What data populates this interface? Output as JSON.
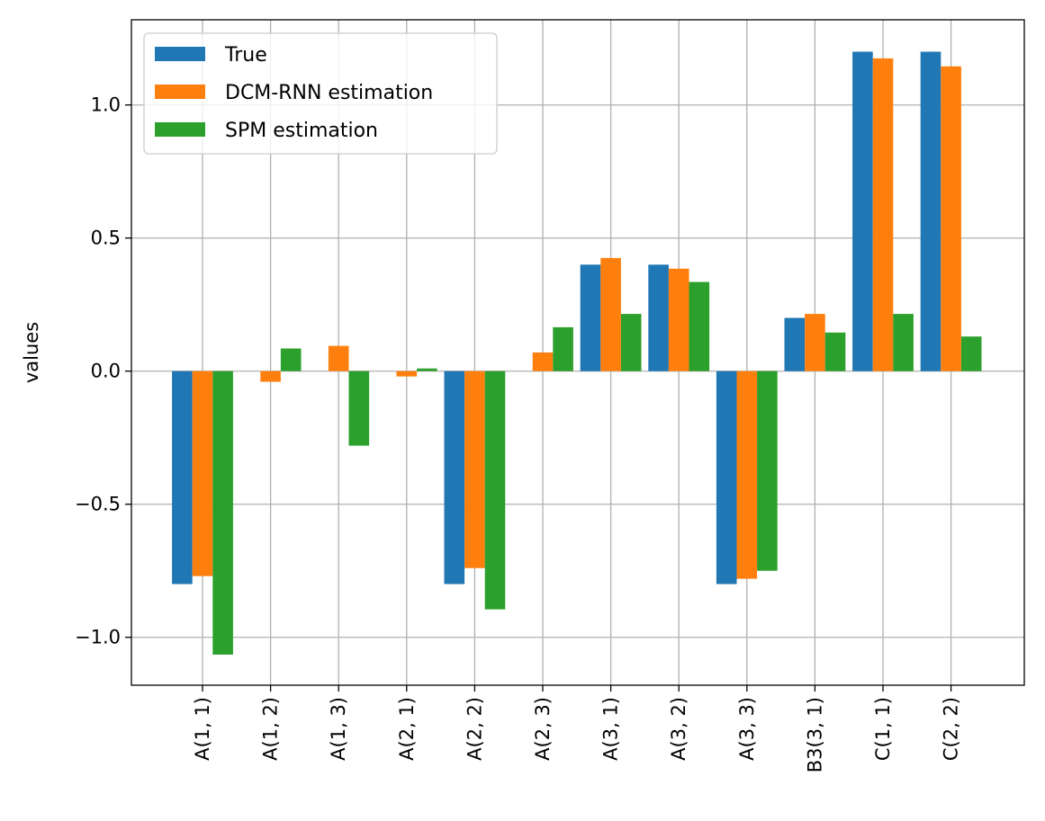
{
  "chart_data": {
    "type": "bar",
    "title": "",
    "xlabel": "",
    "ylabel": "values",
    "ylim": [
      -1.18,
      1.32
    ],
    "yticks": [
      {
        "value": 1.0,
        "label": "1.0"
      },
      {
        "value": 0.5,
        "label": "0.5"
      },
      {
        "value": 0.0,
        "label": "0.0"
      },
      {
        "value": -0.5,
        "label": "−0.5"
      },
      {
        "value": -1.0,
        "label": "−1.0"
      }
    ],
    "grid": true,
    "legend_position": "top-left",
    "categories": [
      "A(1, 1)",
      "A(1, 2)",
      "A(1, 3)",
      "A(2, 1)",
      "A(2, 2)",
      "A(2, 3)",
      "A(3, 1)",
      "A(3, 2)",
      "A(3, 3)",
      "B3(3, 1)",
      "C(1, 1)",
      "C(2, 2)"
    ],
    "series": [
      {
        "name": "True",
        "color": "#1f77b4",
        "values": [
          -0.8,
          0,
          0,
          0,
          -0.8,
          0,
          0.4,
          0.4,
          -0.8,
          0.2,
          1.2,
          1.2
        ]
      },
      {
        "name": "DCM-RNN estimation",
        "color": "#ff7f0e",
        "values": [
          -0.77,
          -0.04,
          0.095,
          -0.02,
          -0.74,
          0.07,
          0.425,
          0.385,
          -0.78,
          0.215,
          1.175,
          1.145
        ]
      },
      {
        "name": "SPM estimation",
        "color": "#2ca02c",
        "values": [
          -1.065,
          0.085,
          -0.28,
          0.01,
          -0.895,
          0.165,
          0.215,
          0.335,
          -0.75,
          0.145,
          0.215,
          0.13
        ]
      }
    ]
  }
}
